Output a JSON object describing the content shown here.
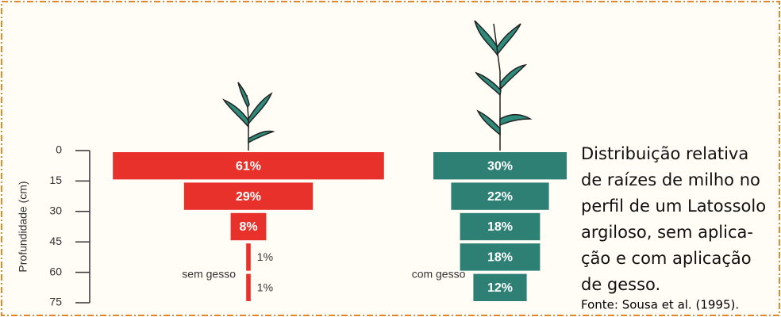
{
  "chart_data": {
    "type": "funnel",
    "y_label": "Profundidade (cm)",
    "ylim": [
      0,
      75
    ],
    "yticks": [
      0,
      15,
      30,
      45,
      60,
      75
    ],
    "categories": [
      null,
      null,
      null,
      null,
      null
    ],
    "series": [
      {
        "name": "sem gesso",
        "color": "#e8312a",
        "values": [
          61,
          29,
          8,
          1,
          1
        ],
        "value_labels": [
          "61%",
          "29%",
          "8%",
          "1%",
          "1%"
        ]
      },
      {
        "name": "com gesso",
        "color": "#2e7f74",
        "values": [
          30,
          22,
          18,
          18,
          12
        ],
        "value_labels": [
          "30%",
          "22%",
          "18%",
          "18%",
          "12%"
        ]
      }
    ],
    "caption": [
      "Distribuição relativa",
      "de raízes de milho no",
      "perfil de um Latossolo",
      "argiloso, sem aplica-",
      "ção e com aplicação",
      "de gesso."
    ],
    "source": "Fonte: Sousa et al. (1995)."
  }
}
